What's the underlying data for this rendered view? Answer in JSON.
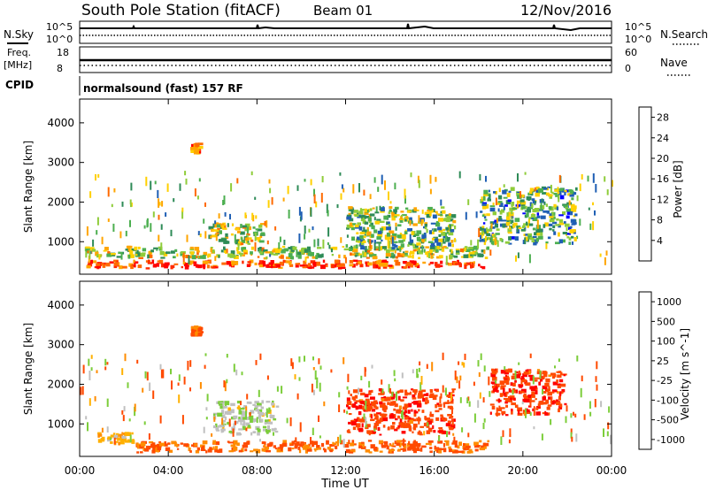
{
  "header": {
    "station": "South Pole Station (fitACF)",
    "beam": "Beam 01",
    "date": "12/Nov/2016"
  },
  "noise_panel": {
    "left_label": "N.Sky",
    "left_ticks": [
      "10^5",
      "10^0"
    ],
    "right_label": "N.Search",
    "right_ticks": [
      "10^5",
      "10^0"
    ]
  },
  "freq_panel": {
    "left_label_1": "Freq.",
    "left_label_2": "[MHz]",
    "left_ticks": [
      "18",
      "8"
    ],
    "right_label": "Nave",
    "right_ticks": [
      "60",
      "0"
    ]
  },
  "cpid": {
    "label": "CPID",
    "value": "normalsound (fast) 157 RF"
  },
  "x_axis": {
    "label": "Time UT",
    "ticks": [
      "00:00",
      "04:00",
      "08:00",
      "12:00",
      "16:00",
      "20:00",
      "00:00"
    ]
  },
  "colors": {
    "power_scale": [
      "#0000ff",
      "#1f5fb4",
      "#2e8b57",
      "#4caf50",
      "#8fcc3a",
      "#ffd000",
      "#ffa500",
      "#ff6a00",
      "#ff2a00",
      "#ff0000"
    ],
    "velocity_scale": [
      "#ff0000",
      "#ff4a00",
      "#ff8c00",
      "#ffb000",
      "#c0c0c0",
      "#7ccd3a",
      "#3f9a5a",
      "#2e6fa0",
      "#1e3fd0"
    ]
  },
  "chart_data": [
    {
      "type": "heatmap",
      "title": "",
      "xlabel": "",
      "ylabel": "Slant Range [km]",
      "ylim": [
        180,
        4600
      ],
      "yticks": [
        "1000",
        "2000",
        "3000",
        "4000"
      ],
      "colorbar": {
        "label": "Power [dB]",
        "ticks": [
          "4",
          "8",
          "12",
          "16",
          "20",
          "24",
          "28"
        ],
        "range": [
          0,
          30
        ]
      },
      "echo_regions": [
        {
          "t_start": 0.2,
          "t_end": 18.5,
          "r_start": 300,
          "r_end": 550,
          "value": 26
        },
        {
          "t_start": 0.2,
          "t_end": 18.5,
          "r_start": 550,
          "r_end": 900,
          "value": 14
        },
        {
          "t_start": 5.0,
          "t_end": 5.6,
          "r_start": 3200,
          "r_end": 3500,
          "value": 22
        },
        {
          "t_start": 5.8,
          "t_end": 8.5,
          "r_start": 900,
          "r_end": 1500,
          "value": 14
        },
        {
          "t_start": 12.0,
          "t_end": 17.0,
          "r_start": 800,
          "r_end": 1900,
          "value": 12
        },
        {
          "t_start": 18.0,
          "t_end": 22.5,
          "r_start": 900,
          "r_end": 2400,
          "value": 10
        }
      ]
    },
    {
      "type": "heatmap",
      "title": "",
      "xlabel": "Time UT",
      "ylabel": "Slant Range [km]",
      "ylim": [
        180,
        4600
      ],
      "yticks": [
        "1000",
        "2000",
        "3000",
        "4000"
      ],
      "colorbar": {
        "label": "Velocity [m s^-1]",
        "ticks": [
          "1000",
          "500",
          "100",
          "25",
          "-25",
          "-100",
          "-500",
          "-1000"
        ],
        "range": [
          -1000,
          1000
        ]
      },
      "echo_regions": [
        {
          "t_start": 2.5,
          "t_end": 18.5,
          "r_start": 250,
          "r_end": 600,
          "value": -120
        },
        {
          "t_start": 0.8,
          "t_end": 2.5,
          "r_start": 450,
          "r_end": 800,
          "value": 0
        },
        {
          "t_start": 5.0,
          "t_end": 5.6,
          "r_start": 3200,
          "r_end": 3500,
          "value": -150
        },
        {
          "t_start": 6.0,
          "t_end": 9.0,
          "r_start": 700,
          "r_end": 1600,
          "value": 80
        },
        {
          "t_start": 12.0,
          "t_end": 17.0,
          "r_start": 700,
          "r_end": 1900,
          "value": -400
        },
        {
          "t_start": 18.5,
          "t_end": 22.0,
          "r_start": 1200,
          "r_end": 2400,
          "value": -450
        }
      ]
    }
  ]
}
